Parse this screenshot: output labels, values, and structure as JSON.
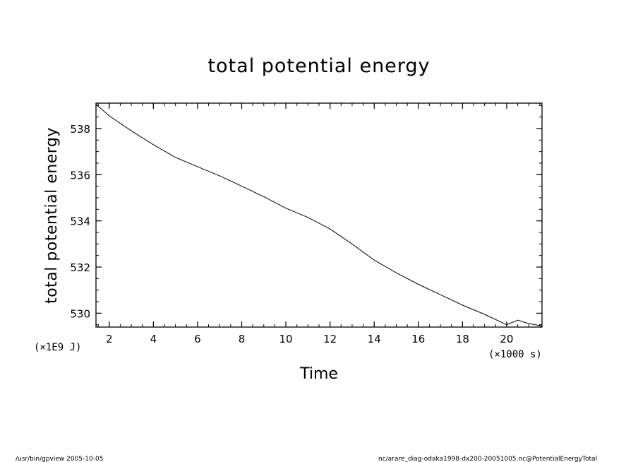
{
  "chart_data": {
    "type": "line",
    "title": "total potential energy",
    "xlabel": "Time",
    "ylabel": "total potential energy",
    "x_unit": "(×1000 s)",
    "y_unit": "(×1E9 J)",
    "xlim": [
      1.4,
      21.6
    ],
    "ylim": [
      529.4,
      539.1
    ],
    "xticks": [
      2,
      4,
      6,
      8,
      10,
      12,
      14,
      16,
      18,
      20
    ],
    "yticks": [
      530,
      532,
      534,
      536,
      538
    ],
    "minor_x_step": 0.5,
    "minor_y_step": 0.5,
    "grid": false,
    "series": [
      {
        "x": [
          1.4,
          2,
          3,
          4,
          5,
          6,
          7,
          8,
          9,
          10,
          11,
          12,
          13,
          14,
          15,
          16,
          17,
          18,
          19,
          20,
          20.5,
          21,
          21.6
        ],
        "y": [
          539.05,
          538.55,
          537.9,
          537.3,
          536.75,
          536.35,
          535.95,
          535.5,
          535.05,
          534.55,
          534.15,
          533.65,
          533.0,
          532.3,
          531.75,
          531.25,
          530.8,
          530.35,
          529.95,
          529.5,
          529.7,
          529.55,
          529.45
        ]
      }
    ]
  },
  "footer": {
    "left": "/usr/bin/gpview   2005-10-05",
    "right": "nc/arare_diag-odaka1998-dx200-20051005.nc@PotentialEnergyTotal"
  }
}
